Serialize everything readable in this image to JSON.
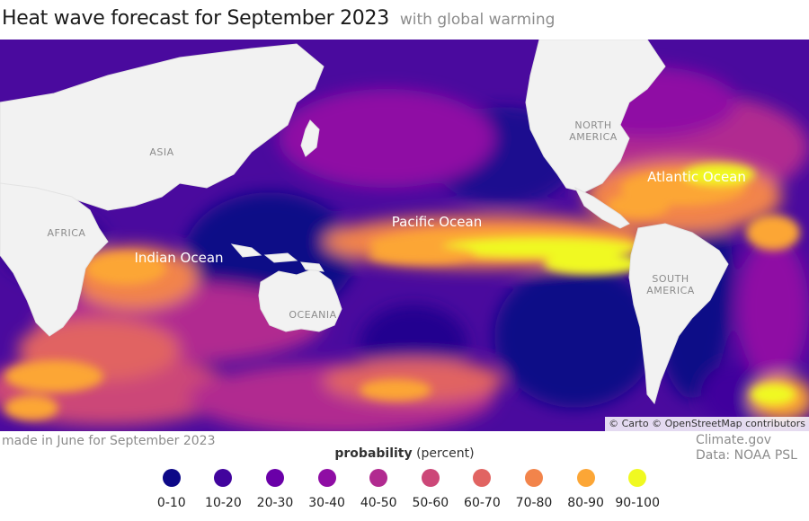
{
  "header": {
    "title": "Heat wave forecast for September 2023",
    "subtitle": "with global warming"
  },
  "map": {
    "attribution": "© Carto © OpenStreetMap contributors",
    "continent_labels": [
      "ASIA",
      "AFRICA",
      "NORTH AMERICA",
      "SOUTH AMERICA",
      "OCEANIA"
    ],
    "ocean_labels": [
      "Indian Ocean",
      "Pacific Ocean",
      "Atlantic Ocean"
    ]
  },
  "footer": {
    "note": "made in June for September 2023",
    "credit_line1": "Climate.gov",
    "credit_line2": "Data: NOAA PSL"
  },
  "legend": {
    "title": "probability",
    "unit": "(percent)",
    "items": [
      {
        "label": "0-10",
        "color": "#0d0887"
      },
      {
        "label": "10-20",
        "color": "#41049d"
      },
      {
        "label": "20-30",
        "color": "#6a00a8"
      },
      {
        "label": "30-40",
        "color": "#8f0da4"
      },
      {
        "label": "40-50",
        "color": "#b12a90"
      },
      {
        "label": "50-60",
        "color": "#cc4778"
      },
      {
        "label": "60-70",
        "color": "#e16462"
      },
      {
        "label": "70-80",
        "color": "#f2844b"
      },
      {
        "label": "80-90",
        "color": "#fca636"
      },
      {
        "label": "90-100",
        "color": "#f0f921"
      }
    ]
  },
  "colors": {
    "land": "#f2f2f2",
    "coast": "#e3e3e3",
    "title": "#1a1a1a",
    "muted": "#8c8c8c"
  }
}
